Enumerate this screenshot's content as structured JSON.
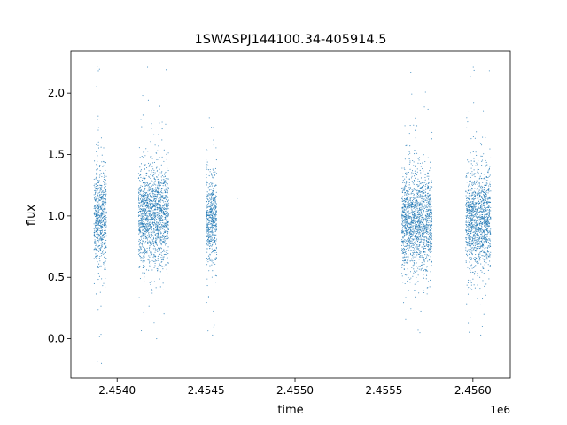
{
  "chart_data": {
    "type": "scatter",
    "title": "1SWASPJ144100.34-405914.5",
    "xlabel": "time",
    "ylabel": "flux",
    "x_offset_label": "1e6",
    "xlim": [
      2453740,
      2456210
    ],
    "ylim": [
      -0.32,
      2.34
    ],
    "x_ticks": [
      2454000,
      2454500,
      2455000,
      2455500,
      2456000
    ],
    "x_tick_labels": [
      "2.4540",
      "2.4545",
      "2.4550",
      "2.4555",
      "2.4560"
    ],
    "y_ticks": [
      0.0,
      0.5,
      1.0,
      1.5,
      2.0
    ],
    "y_tick_labels": [
      "0.0",
      "0.5",
      "1.0",
      "1.5",
      "2.0"
    ],
    "grid": false,
    "marker_color": "#1f77b4",
    "clusters": [
      {
        "x_start": 2453870,
        "x_end": 2453940,
        "center": 1.0,
        "sd": 0.2,
        "y_min": -0.2,
        "y_max": 2.22
      },
      {
        "x_start": 2454120,
        "x_end": 2454290,
        "center": 1.0,
        "sd": 0.2,
        "y_min": 0.0,
        "y_max": 2.21
      },
      {
        "x_start": 2454500,
        "x_end": 2454560,
        "center": 0.97,
        "sd": 0.18,
        "y_min": 0.03,
        "y_max": 1.8
      },
      {
        "x_start": 2455600,
        "x_end": 2455770,
        "center": 0.95,
        "sd": 0.2,
        "y_min": 0.05,
        "y_max": 2.17
      },
      {
        "x_start": 2455960,
        "x_end": 2456100,
        "center": 0.97,
        "sd": 0.2,
        "y_min": 0.03,
        "y_max": 2.21
      }
    ],
    "isolated_points": [
      {
        "x": 2454675,
        "y": 0.78
      },
      {
        "x": 2454675,
        "y": 1.14
      }
    ]
  }
}
